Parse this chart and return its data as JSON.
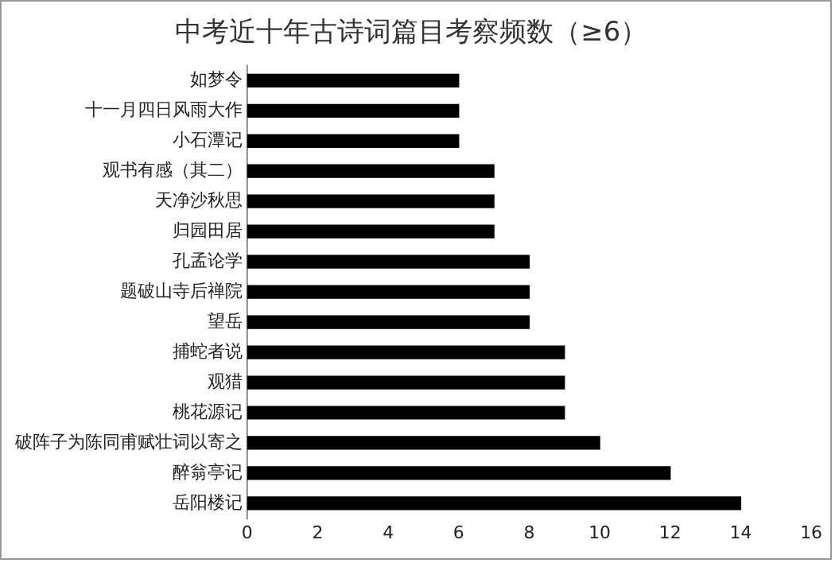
{
  "chart_data": {
    "type": "bar",
    "orientation": "horizontal",
    "title": "中考近十年古诗词篇目考察频数（≥6）",
    "categories": [
      "如梦令",
      "十一月四日风雨大作",
      "小石潭记",
      "观书有感（其二）",
      "天净沙秋思",
      "归园田居",
      "孔孟论学",
      "题破山寺后禅院",
      "望岳",
      "捕蛇者说",
      "观猎",
      "桃花源记",
      "破阵子为陈同甫赋壮词以寄之",
      "醉翁亭记",
      "岳阳楼记"
    ],
    "values": [
      6,
      6,
      6,
      7,
      7,
      7,
      8,
      8,
      8,
      9,
      9,
      9,
      10,
      12,
      14
    ],
    "color": "#000000",
    "xlim": [
      0,
      16
    ],
    "xticks": [
      0,
      2,
      4,
      6,
      8,
      10,
      12,
      14,
      16
    ],
    "grid": false,
    "legend": false
  }
}
